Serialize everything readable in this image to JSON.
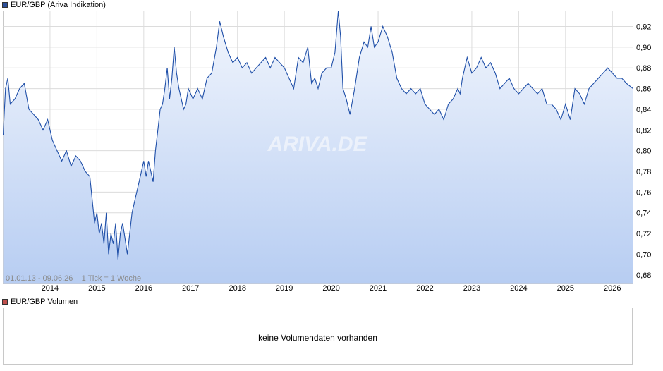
{
  "colors": {
    "line": "#1f4fa8",
    "fill_top": "#f2f6fd",
    "fill_bottom": "#b7cdf2",
    "grid": "#dcdcdc",
    "volume_swatch": "#c0504d",
    "main_swatch": "#2b4f9a"
  },
  "legend": {
    "main": "EUR/GBP (Ariva Indikation)",
    "volume": "EUR/GBP Volumen"
  },
  "info_text": "01.01.13 - 09.06.26    1 Tick = 1 Woche",
  "watermark": "ARIVA.DE",
  "volume_panel": {
    "message": "keine Volumendaten vorhanden"
  },
  "chart_data": {
    "type": "area",
    "title": "EUR/GBP (Ariva Indikation)",
    "xlabel": "",
    "ylabel": "",
    "xlim": [
      2013.0,
      2026.44
    ],
    "ylim": [
      0.672,
      0.935
    ],
    "grid": true,
    "legend": "top-left",
    "x_ticks": [
      "2014",
      "2015",
      "2016",
      "2017",
      "2018",
      "2019",
      "2020",
      "2021",
      "2022",
      "2023",
      "2024",
      "2025",
      "2026"
    ],
    "y_ticks": [
      "0,68",
      "0,70",
      "0,72",
      "0,74",
      "0,76",
      "0,78",
      "0,80",
      "0,82",
      "0,84",
      "0,86",
      "0,88",
      "0,90",
      "0,92"
    ],
    "series": [
      {
        "name": "EUR/GBP",
        "x": [
          2013.0,
          2013.05,
          2013.1,
          2013.15,
          2013.25,
          2013.35,
          2013.45,
          2013.55,
          2013.65,
          2013.75,
          2013.85,
          2013.95,
          2014.05,
          2014.15,
          2014.25,
          2014.35,
          2014.45,
          2014.55,
          2014.65,
          2014.75,
          2014.85,
          2014.95,
          2015.0,
          2015.05,
          2015.1,
          2015.15,
          2015.2,
          2015.25,
          2015.3,
          2015.35,
          2015.4,
          2015.45,
          2015.5,
          2015.55,
          2015.6,
          2015.65,
          2015.7,
          2015.75,
          2015.8,
          2015.85,
          2015.9,
          2015.95,
          2016.0,
          2016.05,
          2016.1,
          2016.15,
          2016.2,
          2016.25,
          2016.3,
          2016.35,
          2016.4,
          2016.45,
          2016.5,
          2016.55,
          2016.6,
          2016.65,
          2016.7,
          2016.75,
          2016.8,
          2016.85,
          2016.9,
          2016.95,
          2017.05,
          2017.15,
          2017.25,
          2017.35,
          2017.45,
          2017.55,
          2017.62,
          2017.7,
          2017.8,
          2017.9,
          2018.0,
          2018.1,
          2018.2,
          2018.3,
          2018.4,
          2018.5,
          2018.6,
          2018.7,
          2018.8,
          2018.9,
          2019.0,
          2019.1,
          2019.2,
          2019.3,
          2019.4,
          2019.5,
          2019.58,
          2019.65,
          2019.72,
          2019.8,
          2019.9,
          2020.0,
          2020.08,
          2020.15,
          2020.2,
          2020.25,
          2020.32,
          2020.4,
          2020.5,
          2020.6,
          2020.7,
          2020.78,
          2020.85,
          2020.92,
          2021.0,
          2021.1,
          2021.2,
          2021.3,
          2021.4,
          2021.5,
          2021.6,
          2021.7,
          2021.8,
          2021.9,
          2022.0,
          2022.1,
          2022.2,
          2022.3,
          2022.4,
          2022.5,
          2022.6,
          2022.7,
          2022.75,
          2022.8,
          2022.9,
          2023.0,
          2023.1,
          2023.2,
          2023.3,
          2023.4,
          2023.5,
          2023.6,
          2023.7,
          2023.8,
          2023.9,
          2024.0,
          2024.1,
          2024.2,
          2024.3,
          2024.4,
          2024.5,
          2024.6,
          2024.7,
          2024.8,
          2024.9,
          2025.0,
          2025.1,
          2025.2,
          2025.3,
          2025.4,
          2025.5,
          2025.6,
          2025.7,
          2025.8,
          2025.9,
          2026.0,
          2026.1,
          2026.2,
          2026.3,
          2026.44
        ],
        "values": [
          0.815,
          0.86,
          0.87,
          0.845,
          0.85,
          0.86,
          0.865,
          0.84,
          0.835,
          0.83,
          0.82,
          0.83,
          0.81,
          0.8,
          0.79,
          0.8,
          0.785,
          0.795,
          0.79,
          0.78,
          0.775,
          0.73,
          0.74,
          0.72,
          0.73,
          0.71,
          0.74,
          0.7,
          0.72,
          0.71,
          0.73,
          0.695,
          0.72,
          0.73,
          0.715,
          0.7,
          0.72,
          0.74,
          0.75,
          0.76,
          0.77,
          0.78,
          0.79,
          0.775,
          0.79,
          0.78,
          0.77,
          0.8,
          0.82,
          0.84,
          0.845,
          0.86,
          0.88,
          0.85,
          0.87,
          0.9,
          0.875,
          0.86,
          0.85,
          0.84,
          0.845,
          0.86,
          0.85,
          0.86,
          0.85,
          0.87,
          0.875,
          0.9,
          0.925,
          0.91,
          0.895,
          0.885,
          0.89,
          0.88,
          0.885,
          0.875,
          0.88,
          0.885,
          0.89,
          0.88,
          0.89,
          0.885,
          0.88,
          0.87,
          0.86,
          0.89,
          0.885,
          0.9,
          0.865,
          0.87,
          0.86,
          0.875,
          0.88,
          0.88,
          0.895,
          0.935,
          0.91,
          0.86,
          0.85,
          0.835,
          0.86,
          0.89,
          0.905,
          0.9,
          0.92,
          0.9,
          0.905,
          0.92,
          0.91,
          0.895,
          0.87,
          0.86,
          0.855,
          0.86,
          0.855,
          0.86,
          0.845,
          0.84,
          0.835,
          0.84,
          0.83,
          0.845,
          0.85,
          0.86,
          0.855,
          0.87,
          0.89,
          0.875,
          0.88,
          0.89,
          0.88,
          0.885,
          0.875,
          0.86,
          0.865,
          0.87,
          0.86,
          0.855,
          0.86,
          0.865,
          0.86,
          0.855,
          0.86,
          0.845,
          0.845,
          0.84,
          0.83,
          0.845,
          0.83,
          0.86,
          0.855,
          0.845,
          0.86,
          0.865,
          0.87,
          0.875,
          0.88,
          0.875,
          0.87,
          0.87,
          0.865,
          0.86
        ]
      }
    ]
  }
}
